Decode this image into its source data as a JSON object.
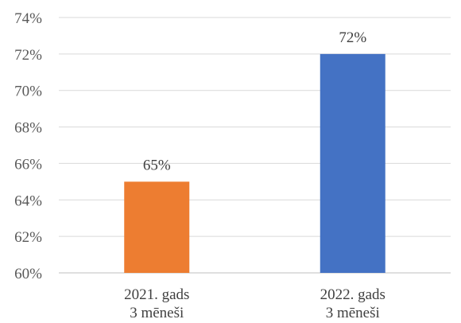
{
  "chart_data": {
    "type": "bar",
    "categories": [
      [
        "2021. gads",
        "3 mēneši"
      ],
      [
        "2022. gads",
        "3 mēneši"
      ]
    ],
    "values": [
      65,
      72
    ],
    "data_labels": [
      "65%",
      "72%"
    ],
    "colors": [
      "#ED7D31",
      "#4472C4"
    ],
    "ylim": [
      60,
      74
    ],
    "y_ticks": [
      60,
      62,
      64,
      66,
      68,
      70,
      72,
      74
    ],
    "y_tick_labels": [
      "60%",
      "62%",
      "64%",
      "66%",
      "68%",
      "70%",
      "72%",
      "74%"
    ],
    "grid": true,
    "legend": "none"
  }
}
